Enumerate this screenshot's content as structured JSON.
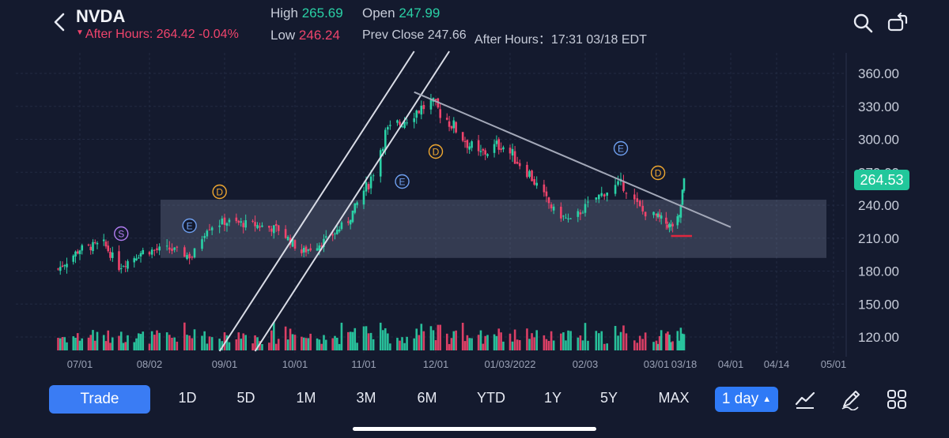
{
  "header": {
    "ticker": "NVDA",
    "after_hours_text": "After Hours: 264.42 -0.04%",
    "high_label": "High",
    "high_value": "265.69",
    "open_label": "Open",
    "open_value": "247.99",
    "low_label": "Low",
    "low_value": "246.24",
    "prev_close_text": "Prev Close 247.66",
    "ah_time_text": "After Hours：17:31 03/18 EDT",
    "icons": [
      "back-icon",
      "search-icon",
      "rotate-screen-icon"
    ]
  },
  "colors": {
    "background": "#141a2e",
    "up": "#2ad1a6",
    "down": "#f0446c",
    "accent": "#3a7cf4",
    "price_tag": "#22c79b",
    "marker_S": "#b07cf0",
    "marker_E": "#6fa0f0",
    "marker_D": "#f0a830"
  },
  "chart_data": {
    "type": "candlestick",
    "y_axis_ticks": [
      "360.00",
      "330.00",
      "300.00",
      "270.00",
      "240.00",
      "210.00",
      "180.00",
      "150.00",
      "120.00"
    ],
    "ylim": [
      120,
      360
    ],
    "x_axis_ticks": [
      "07/01",
      "08/02",
      "09/01",
      "10/01",
      "11/01",
      "12/01",
      "01/03/2022",
      "02/03",
      "03/01",
      "03/18",
      "04/01",
      "04/14",
      "05/01"
    ],
    "current_price": "264.53",
    "grid": true,
    "price_points": [
      {
        "date": "06/21",
        "close": 182
      },
      {
        "date": "07/01",
        "close": 200
      },
      {
        "date": "07/12",
        "close": 205
      },
      {
        "date": "07/19",
        "close": 184
      },
      {
        "date": "07/30",
        "close": 198
      },
      {
        "date": "08/10",
        "close": 200
      },
      {
        "date": "08/19",
        "close": 193
      },
      {
        "date": "08/25",
        "close": 220
      },
      {
        "date": "09/01",
        "close": 225
      },
      {
        "date": "09/14",
        "close": 222
      },
      {
        "date": "09/24",
        "close": 218
      },
      {
        "date": "10/04",
        "close": 197
      },
      {
        "date": "10/15",
        "close": 208
      },
      {
        "date": "10/25",
        "close": 226
      },
      {
        "date": "11/04",
        "close": 265
      },
      {
        "date": "11/10",
        "close": 305
      },
      {
        "date": "11/22",
        "close": 325
      },
      {
        "date": "11/29",
        "close": 333
      },
      {
        "date": "12/08",
        "close": 314
      },
      {
        "date": "12/20",
        "close": 285
      },
      {
        "date": "12/30",
        "close": 296
      },
      {
        "date": "01/10",
        "close": 272
      },
      {
        "date": "01/21",
        "close": 235
      },
      {
        "date": "01/28",
        "close": 225
      },
      {
        "date": "02/07",
        "close": 247
      },
      {
        "date": "02/16",
        "close": 260
      },
      {
        "date": "02/24",
        "close": 234
      },
      {
        "date": "03/03",
        "close": 228
      },
      {
        "date": "03/10",
        "close": 220
      },
      {
        "date": "03/15",
        "close": 228
      },
      {
        "date": "03/18",
        "close": 264.53
      }
    ],
    "event_markers": [
      {
        "label": "S",
        "date": "07/20",
        "kind": "split"
      },
      {
        "label": "E",
        "date": "08/18",
        "kind": "earnings"
      },
      {
        "label": "D",
        "date": "08/30",
        "kind": "dividend"
      },
      {
        "label": "E",
        "date": "11/17",
        "kind": "earnings"
      },
      {
        "label": "D",
        "date": "12/01",
        "kind": "dividend"
      },
      {
        "label": "E",
        "date": "02/16",
        "kind": "earnings"
      },
      {
        "label": "D",
        "date": "03/02",
        "kind": "dividend"
      }
    ],
    "drawings": {
      "support_zone": {
        "upper": 245,
        "lower": 192
      },
      "rising_channel": [
        {
          "from": {
            "date": "08/30",
            "price": 120
          },
          "to": {
            "date": "11/22",
            "price": 360
          }
        },
        {
          "from": {
            "date": "09/14",
            "price": 120
          },
          "to": {
            "date": "12/07",
            "price": 360
          }
        }
      ],
      "downtrend_line": {
        "from": {
          "date": "11/22",
          "price": 343
        },
        "to": {
          "date": "04/01",
          "price": 220
        }
      },
      "red_mark": {
        "price": 212,
        "from": "03/10",
        "to": "03/18"
      }
    }
  },
  "bottom_bar": {
    "trade_label": "Trade",
    "ranges": [
      "1D",
      "5D",
      "1M",
      "3M",
      "6M",
      "YTD",
      "1Y",
      "5Y",
      "MAX"
    ],
    "interval_label": "1 day",
    "tool_icons": [
      "chart-type-icon",
      "draw-tool-icon",
      "grid-menu-icon"
    ]
  }
}
